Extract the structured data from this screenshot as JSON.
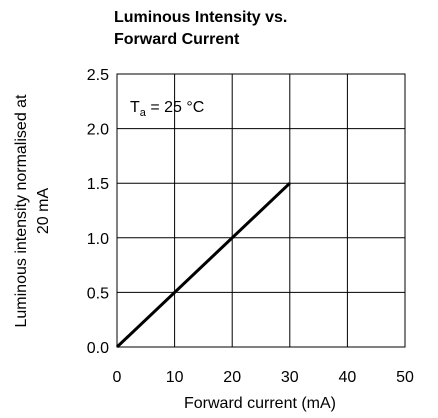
{
  "chart_data": {
    "type": "line",
    "title_lines": [
      "Luminous Intensity vs.",
      "Forward Current"
    ],
    "xlabel": "Forward current (mA)",
    "ylabel_lines": [
      "Luminous intensity normalised at",
      "20 mA"
    ],
    "xlim": [
      0,
      50
    ],
    "ylim": [
      0,
      2.5
    ],
    "x_ticks": [
      0,
      10,
      20,
      30,
      40,
      50
    ],
    "y_ticks": [
      0.0,
      0.5,
      1.0,
      1.5,
      2.0,
      2.5
    ],
    "x_tick_labels": [
      "0",
      "10",
      "20",
      "30",
      "40",
      "50"
    ],
    "y_tick_labels": [
      "0.0",
      "0.5",
      "1.0",
      "1.5",
      "2.0",
      "2.5"
    ],
    "grid": true,
    "annotation": {
      "main": "T",
      "sub": "a",
      "rest": " = 25 °C"
    },
    "series": [
      {
        "x": [
          0,
          30
        ],
        "y": [
          0,
          1.5
        ]
      }
    ],
    "colors": {
      "line": "#000000",
      "grid": "#000000"
    }
  }
}
